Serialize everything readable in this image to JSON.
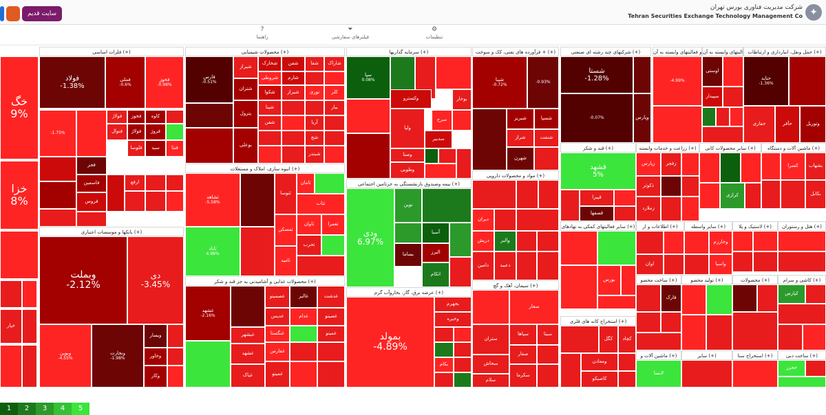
{
  "header": {
    "org_title_fa": "شرکت مدیریت فناوری بورس تهران",
    "org_title_en": "Tehran Securities Exchange Technology Management Co",
    "old_site_label": "سایت قدیم"
  },
  "toolbar": {
    "items": [
      {
        "label": "تنظیمات",
        "icon": "gear-icon"
      },
      {
        "label": "فیلتر‌های سفارشی",
        "icon": "filter-icon"
      },
      {
        "label": "راهنما",
        "icon": "help-icon"
      }
    ]
  },
  "colors": {
    "d3": "#a30000",
    "d2": "#cc0a0a",
    "d1": "#e81c1c",
    "z": "#ff2424",
    "u1": "#2b9a2b",
    "u2": "#1c7a1c",
    "u3": "#3ce53c",
    "dark1": "#6d0505",
    "dark2": "#520000",
    "green_dark": "#0c5f0c"
  },
  "legend": [
    "1",
    "2",
    "3",
    "4",
    "5"
  ],
  "sectors": [
    {
      "title": "قند و شکر",
      "x": 0,
      "y": 0,
      "w": 1,
      "h": 1
    }
  ]
}
